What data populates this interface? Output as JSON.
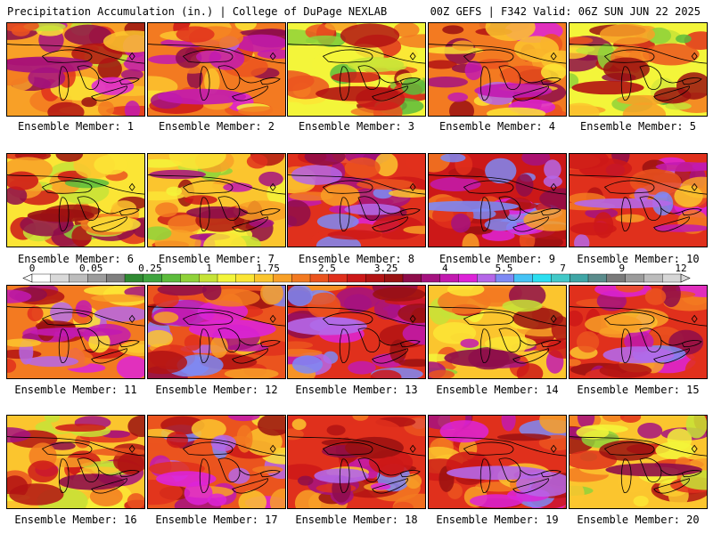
{
  "header": {
    "left": "Precipitation Accumulation (in.) | College of DuPage NEXLAB",
    "right": "00Z GEFS | F342 Valid: 06Z SUN JUN 22 2025"
  },
  "member_prefix": "Ensemble Member: ",
  "members": [
    {
      "label": "Ensemble Member: 1",
      "wetness": 0.55
    },
    {
      "label": "Ensemble Member: 2",
      "wetness": 0.6
    },
    {
      "label": "Ensemble Member: 3",
      "wetness": 0.4
    },
    {
      "label": "Ensemble Member: 4",
      "wetness": 0.62
    },
    {
      "label": "Ensemble Member: 5",
      "wetness": 0.42
    },
    {
      "label": "Ensemble Member: 6",
      "wetness": 0.45
    },
    {
      "label": "Ensemble Member: 7",
      "wetness": 0.5
    },
    {
      "label": "Ensemble Member: 8",
      "wetness": 0.7
    },
    {
      "label": "Ensemble Member: 9",
      "wetness": 0.75
    },
    {
      "label": "Ensemble Member: 10",
      "wetness": 0.68
    },
    {
      "label": "Ensemble Member: 11",
      "wetness": 0.62
    },
    {
      "label": "Ensemble Member: 12",
      "wetness": 0.66
    },
    {
      "label": "Ensemble Member: 13",
      "wetness": 0.72
    },
    {
      "label": "Ensemble Member: 14",
      "wetness": 0.5
    },
    {
      "label": "Ensemble Member: 15",
      "wetness": 0.68
    },
    {
      "label": "Ensemble Member: 16",
      "wetness": 0.52
    },
    {
      "label": "Ensemble Member: 17",
      "wetness": 0.66
    },
    {
      "label": "Ensemble Member: 18",
      "wetness": 0.7
    },
    {
      "label": "Ensemble Member: 19",
      "wetness": 0.68
    },
    {
      "label": "Ensemble Member: 20",
      "wetness": 0.48
    }
  ],
  "colorbar": {
    "labels": [
      "0",
      "0.05",
      "0.25",
      "1",
      "1.75",
      "2.5",
      "3.25",
      "4",
      "5.5",
      "7",
      "9",
      "12"
    ],
    "colors": [
      "#ffffff",
      "#d9d9d9",
      "#bdbdbd",
      "#9c9c9c",
      "#7f7f7f",
      "#2f8a32",
      "#3fa43f",
      "#5cbc3c",
      "#8fd23a",
      "#c6e337",
      "#f3f53a",
      "#fbe535",
      "#fbc52e",
      "#f8a027",
      "#f37a21",
      "#eb541e",
      "#e0301c",
      "#cc1818",
      "#b21313",
      "#9a1111",
      "#8e0d4a",
      "#a51280",
      "#c21ab0",
      "#dd23d8",
      "#b567e8",
      "#7e8af4",
      "#45c3f5",
      "#2bdff0",
      "#43c9c8",
      "#3fa6a6",
      "#5b8c8c",
      "#7a7a7a",
      "#9b9b9b",
      "#bcbcbc",
      "#d6d6d6"
    ]
  }
}
